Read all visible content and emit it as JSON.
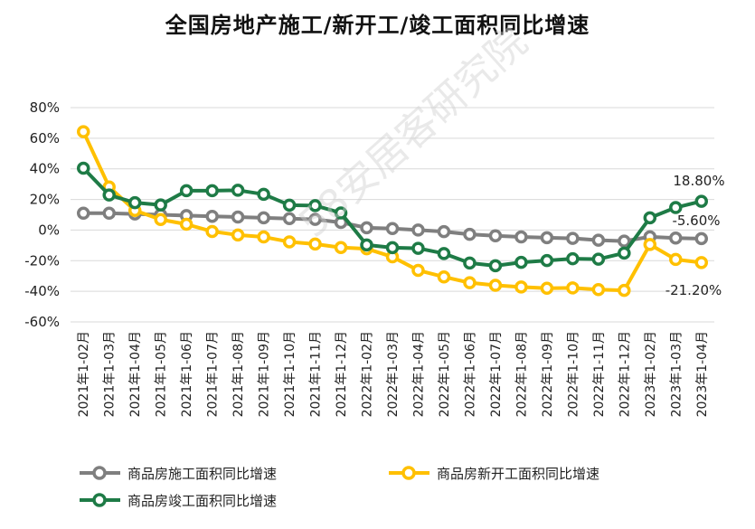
{
  "chart_data": {
    "type": "line",
    "title": "全国房地产施工/新开工/竣工面积同比增速",
    "categories": [
      "2021年1-02月",
      "2021年1-03月",
      "2021年1-04月",
      "2021年1-05月",
      "2021年1-06月",
      "2021年1-07月",
      "2021年1-08月",
      "2021年1-09月",
      "2021年1-10月",
      "2021年1-11月",
      "2021年1-12月",
      "2022年1-02月",
      "2022年1-03月",
      "2022年1-04月",
      "2022年1-05月",
      "2022年1-06月",
      "2022年1-07月",
      "2022年1-08月",
      "2022年1-09月",
      "2022年1-10月",
      "2022年1-11月",
      "2022年1-12月",
      "2023年1-02月",
      "2023年1-03月",
      "2023年1-04月"
    ],
    "yticks": [
      "80%",
      "60%",
      "40%",
      "20%",
      "0%",
      "-20%",
      "-40%",
      "-60%"
    ],
    "ylim": [
      -60,
      80
    ],
    "grid": true,
    "series": [
      {
        "name": "商品房施工面积同比增速",
        "color": "#7f7f7f",
        "values": [
          11,
          11,
          10.5,
          10,
          9.5,
          9,
          8.5,
          8,
          7.5,
          7,
          5,
          1.5,
          1,
          0,
          -1,
          -2.8,
          -3.7,
          -4.5,
          -5,
          -5.4,
          -6.6,
          -7.2,
          -4.4,
          -5.2,
          -5.6
        ]
      },
      {
        "name": "商品房新开工面积同比增速",
        "color": "#ffc000",
        "values": [
          64.3,
          28.2,
          12.8,
          6.9,
          3.8,
          -0.9,
          -3.2,
          -4.5,
          -7.7,
          -9.1,
          -11.4,
          -12.2,
          -17.5,
          -26.3,
          -30.6,
          -34.4,
          -36.1,
          -37.2,
          -38,
          -37.8,
          -38.9,
          -39.4,
          -9.4,
          -19.2,
          -21.2
        ]
      },
      {
        "name": "商品房竣工面积同比增速",
        "color": "#1e7b46",
        "values": [
          40.4,
          22.9,
          17.9,
          16.4,
          25.7,
          25.7,
          26,
          23.4,
          16.3,
          16,
          11.2,
          -9.7,
          -11.5,
          -11.9,
          -15.3,
          -21.5,
          -23.3,
          -21.1,
          -19.9,
          -18.7,
          -19,
          -15,
          8,
          14.7,
          18.8
        ]
      }
    ],
    "annotations": [
      "18.80%",
      "-5.60%",
      "-21.20%"
    ],
    "legend_position": "bottom"
  },
  "watermark": "58安居客研究院"
}
